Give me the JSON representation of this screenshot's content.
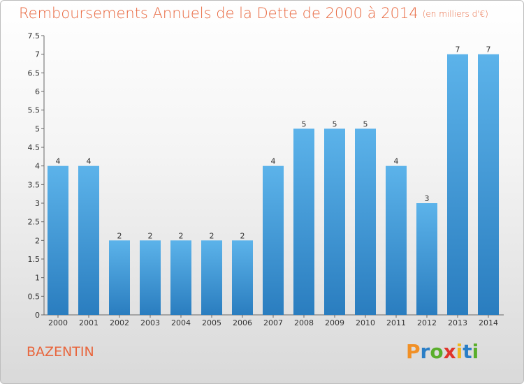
{
  "title": "Remboursements Annuels de la Dette de 2000 à 2014",
  "unit": "(en milliers d'€)",
  "commune": "BAZENTIN",
  "logo_text": "Proxiti",
  "chart_data": {
    "type": "bar",
    "title": "Remboursements Annuels de la Dette de 2000 à 2014",
    "subtitle": "(en milliers d'€)",
    "xlabel": "",
    "ylabel": "",
    "categories": [
      "2000",
      "2001",
      "2002",
      "2003",
      "2004",
      "2005",
      "2006",
      "2007",
      "2008",
      "2009",
      "2010",
      "2011",
      "2012",
      "2013",
      "2014"
    ],
    "values": [
      4,
      4,
      2,
      2,
      2,
      2,
      2,
      4,
      5,
      5,
      5,
      4,
      3,
      7,
      7
    ],
    "ylim": [
      0,
      7.5
    ],
    "yticks": [
      "0",
      "0.5",
      "1",
      "1.5",
      "2",
      "2.5",
      "3",
      "3.5",
      "4",
      "4.5",
      "5",
      "5.5",
      "6",
      "6.5",
      "7",
      "7.5"
    ],
    "grid": false,
    "bar_color": "#4ea3e0"
  }
}
